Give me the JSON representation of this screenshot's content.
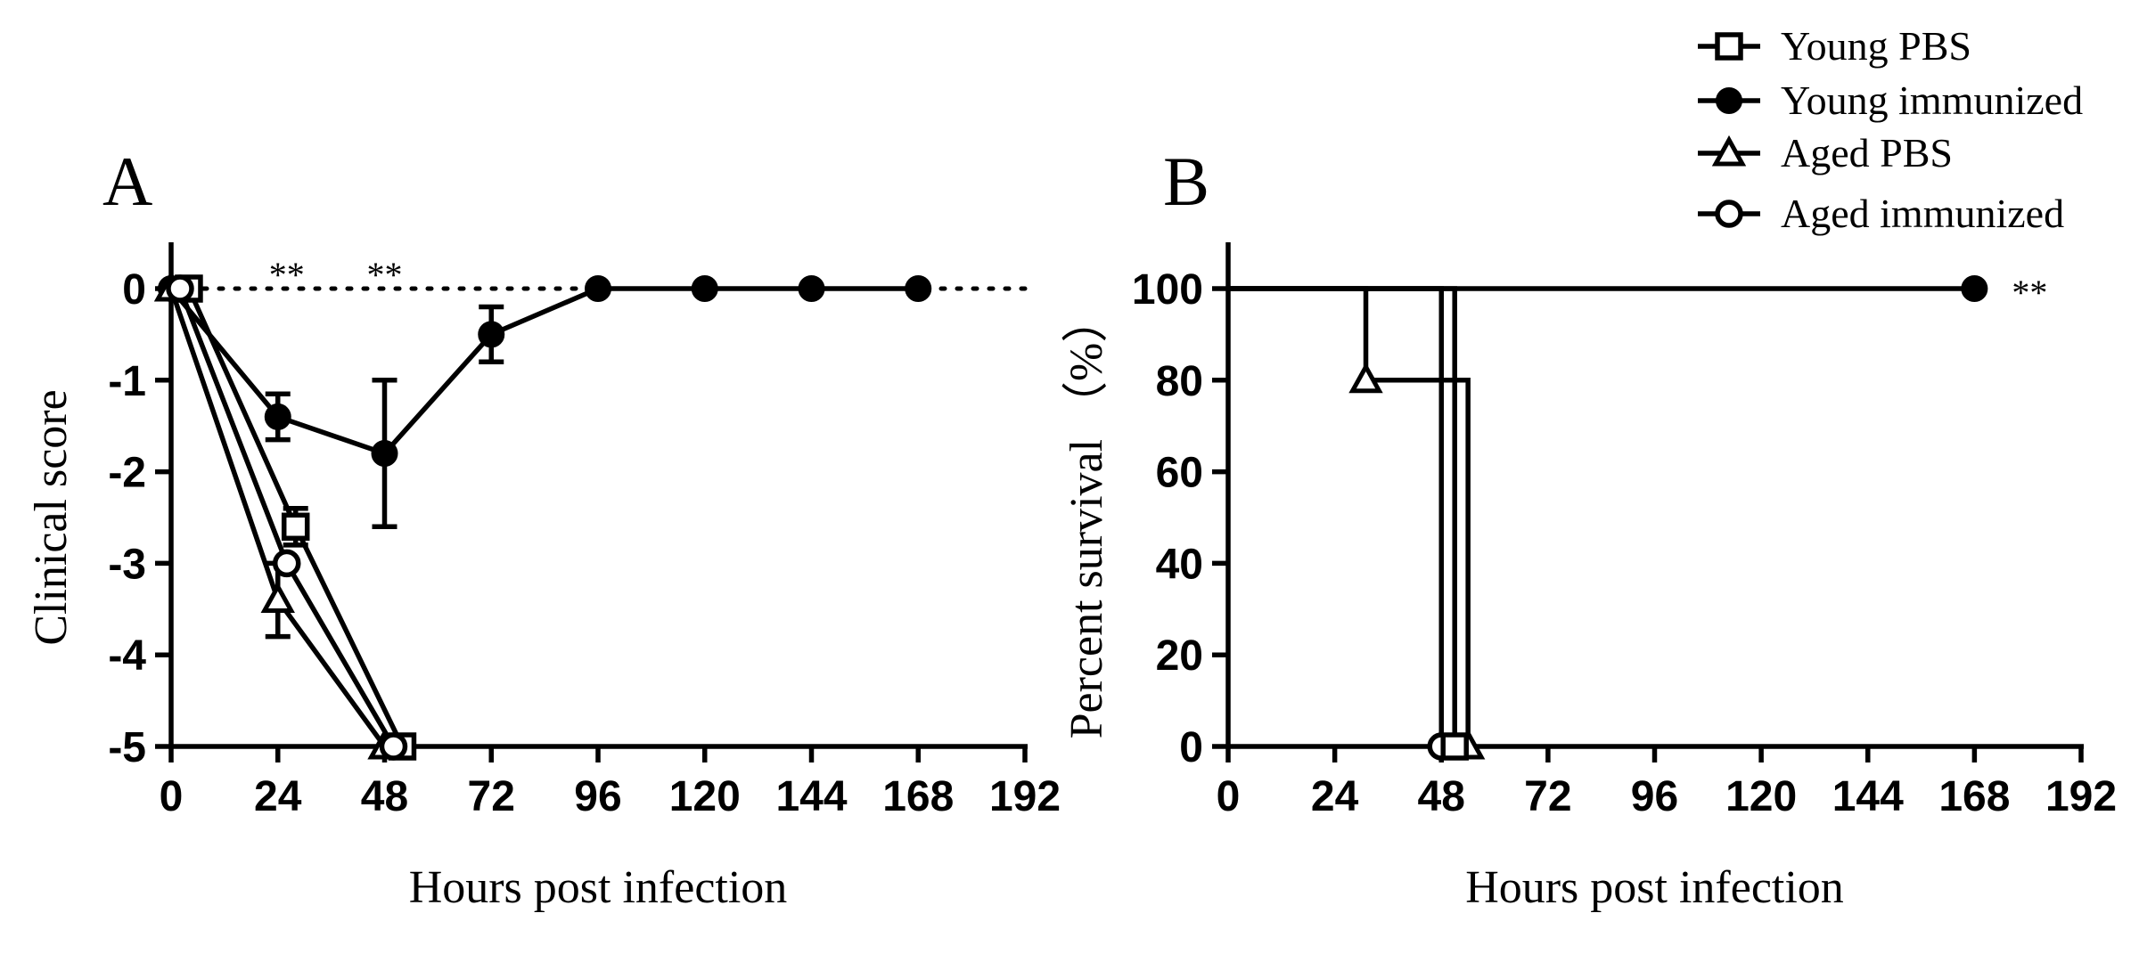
{
  "legend": [
    {
      "name": "Young PBS",
      "marker": "square-open"
    },
    {
      "name": "Young immunized",
      "marker": "circle-filled"
    },
    {
      "name": "Aged PBS",
      "marker": "triangle-open"
    },
    {
      "name": "Aged immunized",
      "marker": "circle-open"
    }
  ],
  "chart_data": [
    {
      "panel": "A",
      "type": "line",
      "xlabel": "Hours post infection",
      "ylabel": "Clinical score",
      "xlim": [
        0,
        192
      ],
      "ylim": [
        -5,
        0
      ],
      "xticks": [
        "0",
        "24",
        "48",
        "72",
        "96",
        "120",
        "144",
        "168",
        "192"
      ],
      "yticks": [
        "0",
        "-1",
        "-2",
        "-3",
        "-4",
        "-5"
      ],
      "grid": false,
      "baseline": {
        "y": 0,
        "style": "dotted"
      },
      "annotations": [
        {
          "text": "**",
          "x": 26
        },
        {
          "text": "**",
          "x": 48
        }
      ],
      "series": [
        {
          "name": "Young PBS",
          "marker": "square-open",
          "x": [
            4,
            28,
            52
          ],
          "y": [
            0,
            -2.6,
            -5
          ],
          "err": [
            0,
            0.2,
            0
          ]
        },
        {
          "name": "Young immunized",
          "marker": "circle-filled",
          "x": [
            0,
            24,
            48,
            72,
            96,
            120,
            144,
            168
          ],
          "y": [
            0,
            -1.4,
            -1.8,
            -0.5,
            0,
            0,
            0,
            0
          ],
          "err": [
            0,
            0.25,
            0.8,
            0.3,
            0,
            0,
            0,
            0
          ]
        },
        {
          "name": "Aged PBS",
          "marker": "triangle-open",
          "x": [
            0,
            24,
            48
          ],
          "y": [
            0,
            -3.4,
            -5
          ],
          "err": [
            0,
            0.4,
            0
          ]
        },
        {
          "name": "Aged immunized",
          "marker": "circle-open",
          "x": [
            2,
            26,
            50
          ],
          "y": [
            0,
            -3.0,
            -5
          ],
          "err": [
            0,
            0,
            0
          ]
        }
      ]
    },
    {
      "panel": "B",
      "type": "line",
      "step": true,
      "xlabel": "Hours post infection",
      "ylabel": "Percent survival （%）",
      "xlim": [
        0,
        192
      ],
      "ylim": [
        0,
        100
      ],
      "xticks": [
        "0",
        "24",
        "48",
        "72",
        "96",
        "120",
        "144",
        "168",
        "192"
      ],
      "yticks": [
        "100",
        "80",
        "60",
        "40",
        "20",
        "0"
      ],
      "grid": false,
      "annotations": [
        {
          "text": "**",
          "x": 168,
          "y": 100
        }
      ],
      "series": [
        {
          "name": "Young immunized",
          "marker": "circle-filled",
          "x": [
            0,
            168
          ],
          "y": [
            100,
            100
          ],
          "endpoint": [
            168,
            100
          ]
        },
        {
          "name": "Aged PBS",
          "marker": "triangle-open",
          "x": [
            0,
            31,
            31,
            54,
            54
          ],
          "y": [
            100,
            100,
            80,
            80,
            0
          ],
          "marker_at": [
            [
              31,
              80
            ],
            [
              54,
              0
            ]
          ]
        },
        {
          "name": "Aged immunized",
          "marker": "circle-open",
          "x": [
            0,
            48,
            48
          ],
          "y": [
            100,
            100,
            0
          ],
          "marker_at": [
            [
              48,
              0
            ]
          ]
        },
        {
          "name": "Young PBS",
          "marker": "square-open",
          "x": [
            0,
            51,
            51
          ],
          "y": [
            100,
            100,
            0
          ],
          "marker_at": [
            [
              51,
              0
            ]
          ]
        }
      ]
    }
  ]
}
